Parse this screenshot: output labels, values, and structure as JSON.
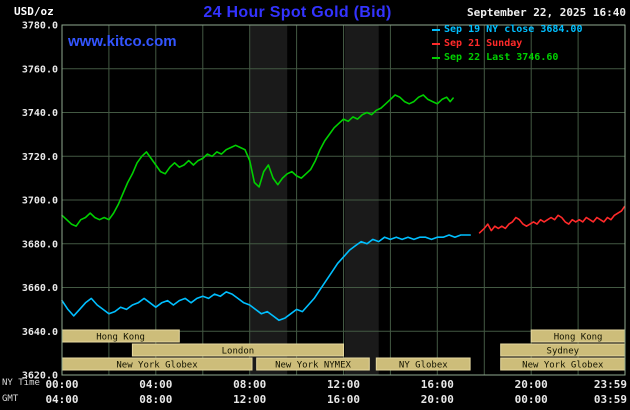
{
  "header": {
    "units": "USD/oz",
    "title": "24 Hour Spot Gold (Bid)",
    "datetime": "September 22, 2025 16:40",
    "watermark": "www.kitco.com"
  },
  "legend": [
    {
      "label": "Sep 19 NY close 3684.00",
      "color": "#00bfff"
    },
    {
      "label": "Sep 21 Sunday",
      "color": "#ff2a2a"
    },
    {
      "label": "Sep 22 Last 3746.60",
      "color": "#00d000"
    }
  ],
  "axes": {
    "ny_label": "NY Time",
    "gmt_label": "GMT",
    "ny_ticks": [
      {
        "hour": 0,
        "label": "00:00"
      },
      {
        "hour": 4,
        "label": "04:00"
      },
      {
        "hour": 8,
        "label": "08:00"
      },
      {
        "hour": 12,
        "label": "12:00"
      },
      {
        "hour": 16,
        "label": "16:00"
      },
      {
        "hour": 20,
        "label": "20:00"
      },
      {
        "hour": 23.98,
        "label": "23:59"
      }
    ],
    "gmt_ticks": [
      {
        "hour": 0,
        "label": "04:00"
      },
      {
        "hour": 4,
        "label": "08:00"
      },
      {
        "hour": 8,
        "label": "12:00"
      },
      {
        "hour": 12,
        "label": "16:00"
      },
      {
        "hour": 16,
        "label": "20:00"
      },
      {
        "hour": 20,
        "label": "00:00"
      },
      {
        "hour": 23.98,
        "label": "03:59"
      }
    ],
    "y_ticks": [
      3620,
      3640,
      3660,
      3680,
      3700,
      3720,
      3740,
      3760,
      3780
    ]
  },
  "chart_data": {
    "type": "line",
    "title": "24 Hour Spot Gold (Bid)",
    "ylabel": "USD/oz",
    "xlim_hours": [
      0,
      24
    ],
    "ylim": [
      3620,
      3780
    ],
    "y_grid_step": 20,
    "x_grid_step_hours": 2,
    "grid": true,
    "legend_position": "top-right",
    "shaded_bands_hours": [
      {
        "start": 8.0,
        "end": 9.6
      },
      {
        "start": 12.05,
        "end": 13.5
      }
    ],
    "sessions": [
      {
        "row": 0,
        "label": "Hong Kong",
        "start": 0,
        "end": 5.0
      },
      {
        "row": 0,
        "label": "Hong Kong",
        "start": 20.0,
        "end": 24
      },
      {
        "row": 1,
        "label": "London",
        "start": 3.0,
        "end": 12.0
      },
      {
        "row": 1,
        "label": "Sydney",
        "start": 18.7,
        "end": 24
      },
      {
        "row": 2,
        "label": "New York Globex",
        "start": 0,
        "end": 8.1
      },
      {
        "row": 2,
        "label": "New York NYMEX",
        "start": 8.3,
        "end": 13.1
      },
      {
        "row": 2,
        "label": "NY Globex",
        "start": 13.4,
        "end": 17.4
      },
      {
        "row": 2,
        "label": "New York Globex",
        "start": 18.7,
        "end": 24
      }
    ],
    "series": [
      {
        "name": "Sep 19 NY close",
        "color": "#00bfff",
        "close": 3684.0,
        "points": [
          [
            0,
            3654
          ],
          [
            0.25,
            3650
          ],
          [
            0.5,
            3647
          ],
          [
            0.75,
            3650
          ],
          [
            1,
            3653
          ],
          [
            1.25,
            3655
          ],
          [
            1.5,
            3652
          ],
          [
            1.75,
            3650
          ],
          [
            2,
            3648
          ],
          [
            2.25,
            3649
          ],
          [
            2.5,
            3651
          ],
          [
            2.75,
            3650
          ],
          [
            3,
            3652
          ],
          [
            3.25,
            3653
          ],
          [
            3.5,
            3655
          ],
          [
            3.75,
            3653
          ],
          [
            4,
            3651
          ],
          [
            4.25,
            3653
          ],
          [
            4.5,
            3654
          ],
          [
            4.75,
            3652
          ],
          [
            5,
            3654
          ],
          [
            5.25,
            3655
          ],
          [
            5.5,
            3653
          ],
          [
            5.75,
            3655
          ],
          [
            6,
            3656
          ],
          [
            6.25,
            3655
          ],
          [
            6.5,
            3657
          ],
          [
            6.75,
            3656
          ],
          [
            7,
            3658
          ],
          [
            7.25,
            3657
          ],
          [
            7.5,
            3655
          ],
          [
            7.75,
            3653
          ],
          [
            8,
            3652
          ],
          [
            8.25,
            3650
          ],
          [
            8.5,
            3648
          ],
          [
            8.75,
            3649
          ],
          [
            9,
            3647
          ],
          [
            9.25,
            3645
          ],
          [
            9.5,
            3646
          ],
          [
            9.75,
            3648
          ],
          [
            10,
            3650
          ],
          [
            10.25,
            3649
          ],
          [
            10.5,
            3652
          ],
          [
            10.75,
            3655
          ],
          [
            11,
            3659
          ],
          [
            11.25,
            3663
          ],
          [
            11.5,
            3667
          ],
          [
            11.75,
            3671
          ],
          [
            12,
            3674
          ],
          [
            12.25,
            3677
          ],
          [
            12.5,
            3679
          ],
          [
            12.75,
            3681
          ],
          [
            13,
            3680
          ],
          [
            13.25,
            3682
          ],
          [
            13.5,
            3681
          ],
          [
            13.75,
            3683
          ],
          [
            14,
            3682
          ],
          [
            14.25,
            3683
          ],
          [
            14.5,
            3682
          ],
          [
            14.75,
            3683
          ],
          [
            15,
            3682
          ],
          [
            15.25,
            3683
          ],
          [
            15.5,
            3683
          ],
          [
            15.75,
            3682
          ],
          [
            16,
            3683
          ],
          [
            16.25,
            3683
          ],
          [
            16.5,
            3684
          ],
          [
            16.75,
            3683
          ],
          [
            17,
            3684
          ],
          [
            17.2,
            3684
          ],
          [
            17.4,
            3684
          ]
        ]
      },
      {
        "name": "Sep 21 Sunday",
        "color": "#ff2a2a",
        "points": [
          [
            17.8,
            3685
          ],
          [
            18,
            3687
          ],
          [
            18.15,
            3689
          ],
          [
            18.3,
            3686
          ],
          [
            18.45,
            3688
          ],
          [
            18.6,
            3687
          ],
          [
            18.75,
            3688
          ],
          [
            18.9,
            3687
          ],
          [
            19.05,
            3689
          ],
          [
            19.2,
            3690
          ],
          [
            19.35,
            3692
          ],
          [
            19.5,
            3691
          ],
          [
            19.65,
            3689
          ],
          [
            19.8,
            3688
          ],
          [
            19.95,
            3689
          ],
          [
            20.1,
            3690
          ],
          [
            20.25,
            3689
          ],
          [
            20.4,
            3691
          ],
          [
            20.55,
            3690
          ],
          [
            20.7,
            3691
          ],
          [
            20.85,
            3692
          ],
          [
            21,
            3691
          ],
          [
            21.15,
            3693
          ],
          [
            21.3,
            3692
          ],
          [
            21.45,
            3690
          ],
          [
            21.6,
            3689
          ],
          [
            21.75,
            3691
          ],
          [
            21.9,
            3690
          ],
          [
            22.05,
            3691
          ],
          [
            22.2,
            3690
          ],
          [
            22.35,
            3692
          ],
          [
            22.5,
            3691
          ],
          [
            22.65,
            3690
          ],
          [
            22.8,
            3692
          ],
          [
            22.95,
            3691
          ],
          [
            23.1,
            3690
          ],
          [
            23.25,
            3692
          ],
          [
            23.4,
            3691
          ],
          [
            23.55,
            3693
          ],
          [
            23.7,
            3694
          ],
          [
            23.85,
            3695
          ],
          [
            23.98,
            3697
          ]
        ]
      },
      {
        "name": "Sep 22 Last",
        "color": "#00d000",
        "last": 3746.6,
        "points": [
          [
            0,
            3693
          ],
          [
            0.2,
            3691
          ],
          [
            0.4,
            3689
          ],
          [
            0.6,
            3688
          ],
          [
            0.8,
            3691
          ],
          [
            1,
            3692
          ],
          [
            1.2,
            3694
          ],
          [
            1.4,
            3692
          ],
          [
            1.6,
            3691
          ],
          [
            1.8,
            3692
          ],
          [
            2,
            3691
          ],
          [
            2.2,
            3694
          ],
          [
            2.4,
            3698
          ],
          [
            2.6,
            3703
          ],
          [
            2.8,
            3708
          ],
          [
            3,
            3712
          ],
          [
            3.2,
            3717
          ],
          [
            3.4,
            3720
          ],
          [
            3.6,
            3722
          ],
          [
            3.8,
            3719
          ],
          [
            4,
            3716
          ],
          [
            4.2,
            3713
          ],
          [
            4.4,
            3712
          ],
          [
            4.6,
            3715
          ],
          [
            4.8,
            3717
          ],
          [
            5,
            3715
          ],
          [
            5.2,
            3716
          ],
          [
            5.4,
            3718
          ],
          [
            5.6,
            3716
          ],
          [
            5.8,
            3718
          ],
          [
            6,
            3719
          ],
          [
            6.2,
            3721
          ],
          [
            6.4,
            3720
          ],
          [
            6.6,
            3722
          ],
          [
            6.8,
            3721
          ],
          [
            7,
            3723
          ],
          [
            7.2,
            3724
          ],
          [
            7.4,
            3725
          ],
          [
            7.6,
            3724
          ],
          [
            7.8,
            3723
          ],
          [
            8,
            3718
          ],
          [
            8.2,
            3708
          ],
          [
            8.4,
            3706
          ],
          [
            8.6,
            3713
          ],
          [
            8.8,
            3716
          ],
          [
            9,
            3710
          ],
          [
            9.2,
            3707
          ],
          [
            9.4,
            3710
          ],
          [
            9.6,
            3712
          ],
          [
            9.8,
            3713
          ],
          [
            10,
            3711
          ],
          [
            10.2,
            3710
          ],
          [
            10.4,
            3712
          ],
          [
            10.6,
            3714
          ],
          [
            10.8,
            3718
          ],
          [
            11,
            3723
          ],
          [
            11.2,
            3727
          ],
          [
            11.4,
            3730
          ],
          [
            11.6,
            3733
          ],
          [
            11.8,
            3735
          ],
          [
            12,
            3737
          ],
          [
            12.2,
            3736
          ],
          [
            12.4,
            3738
          ],
          [
            12.6,
            3737
          ],
          [
            12.8,
            3739
          ],
          [
            13,
            3740
          ],
          [
            13.2,
            3739
          ],
          [
            13.4,
            3741
          ],
          [
            13.6,
            3742
          ],
          [
            13.8,
            3744
          ],
          [
            14,
            3746
          ],
          [
            14.2,
            3748
          ],
          [
            14.4,
            3747
          ],
          [
            14.6,
            3745
          ],
          [
            14.8,
            3744
          ],
          [
            15,
            3745
          ],
          [
            15.2,
            3747
          ],
          [
            15.4,
            3748
          ],
          [
            15.6,
            3746
          ],
          [
            15.8,
            3745
          ],
          [
            16,
            3744
          ],
          [
            16.2,
            3746
          ],
          [
            16.4,
            3747
          ],
          [
            16.55,
            3745
          ],
          [
            16.67,
            3746.6
          ]
        ]
      }
    ],
    "colors": {
      "background": "#000000",
      "plot_background": "#000000",
      "grid": "#435943",
      "frame": "#8faa8f",
      "band": "#1a1a1a",
      "session_fill": "#cdbd7a",
      "session_border": "#e6d9a0",
      "session_text": "#141400",
      "axis_text": "#e8e8e8",
      "title": "#3333ff",
      "watermark": "#3355ff",
      "datetime_text": "#f0f0f0"
    }
  }
}
